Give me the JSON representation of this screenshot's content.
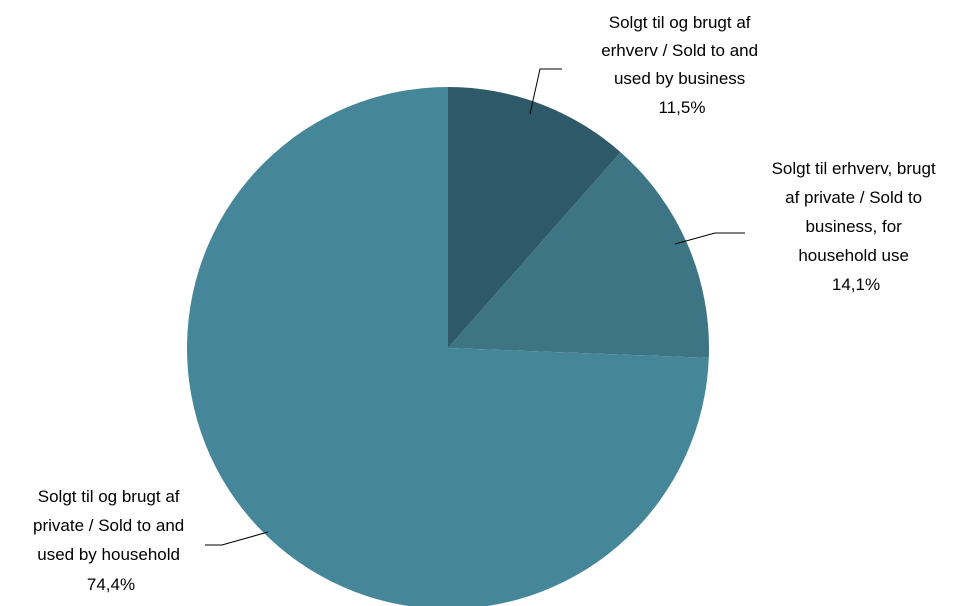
{
  "chart_data": {
    "type": "pie",
    "start_angle_deg": 0,
    "direction": "clockwise",
    "slices": [
      {
        "label_lines": [
          "Solgt til og brugt af",
          "erhverv / Sold to and",
          "used by  business"
        ],
        "value": 11.5,
        "value_label": "11,5%",
        "color": "#2d5968"
      },
      {
        "label_lines": [
          "Solgt til erhverv, brugt",
          "af private / Sold to",
          "business, for",
          "household use"
        ],
        "value": 14.1,
        "value_label": "14,1%",
        "color": "#3e7585"
      },
      {
        "label_lines": [
          "Solgt til og brugt af",
          "private / Sold to and",
          "used by household"
        ],
        "value": 74.4,
        "value_label": "74,4%",
        "color": "#458799"
      }
    ],
    "legend": "none"
  }
}
